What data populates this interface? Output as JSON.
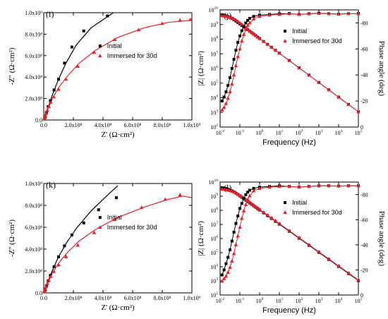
{
  "colors": {
    "initial": "#000000",
    "immersed": "#e8202a",
    "fit_immersed": "#e8202a",
    "fit_initial": "#000000"
  },
  "chart_data": [
    {
      "id": "i",
      "type": "scatter",
      "panel_label": "(i)",
      "xlabel": "Z' (Ω·cm²)",
      "ylabel": "-Z'' (Ω·cm²)",
      "xlim": [
        0,
        1000000000.0
      ],
      "ylim": [
        0,
        1000000000.0
      ],
      "xticks": [
        0,
        200000000.0,
        400000000.0,
        600000000.0,
        800000000.0,
        1000000000.0
      ],
      "xtick_labels": [
        "0.0",
        "2.0x10⁸",
        "4.0x10⁸",
        "6.0x10⁸",
        "8.0x10⁸",
        "1.0x10⁹"
      ],
      "yticks": [
        0,
        200000000.0,
        400000000.0,
        600000000.0,
        800000000.0,
        1000000000.0
      ],
      "ytick_labels": [
        "0.0",
        "2.0x10⁸",
        "4.0x10⁸",
        "6.0x10⁸",
        "8.0x10⁸",
        "1.0x10⁹"
      ],
      "legend": {
        "position": "right",
        "entries": [
          "Initial",
          "Immersed for 30d"
        ]
      },
      "series": [
        {
          "name": "Initial",
          "marker": "square",
          "x": [
            5000000.0,
            10000000.0,
            18000000.0,
            30000000.0,
            45000000.0,
            70000000.0,
            100000000.0,
            140000000.0,
            190000000.0,
            270000000.0,
            430000000.0
          ],
          "y": [
            10000000.0,
            30000000.0,
            70000000.0,
            125000000.0,
            180000000.0,
            280000000.0,
            380000000.0,
            530000000.0,
            680000000.0,
            830000000.0,
            970000000.0
          ]
        },
        {
          "name": "Immersed for 30d",
          "marker": "triangle",
          "x": [
            3000000.0,
            6000000.0,
            10000000.0,
            16000000.0,
            24000000.0,
            34000000.0,
            48000000.0,
            68000000.0,
            100000000.0,
            150000000.0,
            230000000.0,
            340000000.0,
            480000000.0,
            640000000.0,
            800000000.0,
            920000000.0,
            990000000.0
          ],
          "y": [
            8000000.0,
            20000000.0,
            38000000.0,
            60000000.0,
            90000000.0,
            125000000.0,
            165000000.0,
            215000000.0,
            285000000.0,
            380000000.0,
            500000000.0,
            630000000.0,
            750000000.0,
            840000000.0,
            900000000.0,
            930000000.0,
            935000000.0
          ]
        }
      ],
      "fits": [
        {
          "name": "Initial",
          "x": [
            0,
            10000000.0,
            30000000.0,
            60000000.0,
            100000000.0,
            150000000.0,
            220000000.0,
            320000000.0,
            470000000.0
          ],
          "y": [
            0,
            40000000.0,
            120000000.0,
            240000000.0,
            380000000.0,
            530000000.0,
            700000000.0,
            860000000.0,
            1000000000.0
          ]
        },
        {
          "name": "Immersed for 30d",
          "x": [
            0,
            10000000.0,
            30000000.0,
            60000000.0,
            100000000.0,
            160000000.0,
            240000000.0,
            350000000.0,
            500000000.0,
            680000000.0,
            840000000.0,
            1000000000.0
          ],
          "y": [
            0,
            35000000.0,
            110000000.0,
            205000000.0,
            300000000.0,
            410000000.0,
            530000000.0,
            650000000.0,
            770000000.0,
            860000000.0,
            910000000.0,
            930000000.0
          ]
        }
      ]
    },
    {
      "id": "j",
      "type": "scatter",
      "panel_label": "(j)",
      "xlabel": "Frequency (Hz)",
      "ylabel": "|Z| (Ω·cm²)",
      "y2label": "Phase angle (deg)",
      "log_x": true,
      "log_y": true,
      "x_log_range": [
        -2,
        5
      ],
      "y_log_range": [
        2,
        10
      ],
      "y2lim": [
        0,
        -90
      ],
      "y_tick_exps": [
        2,
        3,
        4,
        5,
        6,
        7,
        8,
        9,
        10
      ],
      "x_tick_exps": [
        -2,
        -1,
        0,
        1,
        2,
        3,
        4,
        5
      ],
      "y2ticks": [
        -20,
        -40,
        -60,
        -80
      ],
      "legend": {
        "position": "top-right",
        "entries": [
          "Initial",
          "Immersed for 30d"
        ]
      },
      "series": [
        {
          "name": "Initial |Z|",
          "quantity": "modulus",
          "marker": "square",
          "log_f": [
            -1.9,
            -1.8,
            -1.7,
            -1.6,
            -1.5,
            -1.4,
            -1.3,
            -1.2,
            -1.1,
            -1.0,
            -0.9,
            -0.8,
            -0.7,
            -0.6,
            -0.5,
            -0.4,
            -0.3,
            -0.2,
            -0.1,
            0.0,
            0.2,
            0.4,
            0.6,
            0.8,
            1.0,
            1.5,
            2.0,
            2.5,
            3.0,
            3.5,
            4.0,
            4.5,
            5.0
          ],
          "log_z": [
            9.67,
            9.64,
            9.6,
            9.55,
            9.49,
            9.42,
            9.33,
            9.24,
            9.14,
            9.04,
            8.94,
            8.84,
            8.74,
            8.64,
            8.54,
            8.44,
            8.34,
            8.24,
            8.14,
            8.04,
            7.84,
            7.64,
            7.44,
            7.24,
            7.04,
            6.54,
            6.04,
            5.54,
            5.04,
            4.54,
            4.04,
            3.54,
            3.04
          ]
        },
        {
          "name": "Immersed |Z|",
          "quantity": "modulus",
          "marker": "triangle",
          "log_f": [
            -1.9,
            -1.8,
            -1.7,
            -1.6,
            -1.5,
            -1.4,
            -1.3,
            -1.2,
            -1.1,
            -1.0,
            -0.9,
            -0.8,
            -0.7,
            -0.6,
            -0.5,
            -0.4,
            -0.3,
            -0.2,
            -0.1,
            0.0,
            0.2,
            0.4,
            0.6,
            0.8,
            1.0,
            1.5,
            2.0,
            2.5,
            3.0,
            3.5,
            4.0,
            4.5,
            5.0
          ],
          "log_z": [
            9.6,
            9.58,
            9.56,
            9.53,
            9.49,
            9.44,
            9.38,
            9.3,
            9.21,
            9.11,
            9.0,
            8.89,
            8.78,
            8.67,
            8.56,
            8.45,
            8.34,
            8.24,
            8.14,
            8.04,
            7.84,
            7.64,
            7.44,
            7.24,
            7.04,
            6.54,
            6.04,
            5.54,
            5.04,
            4.54,
            4.04,
            3.54,
            3.04
          ]
        },
        {
          "name": "Initial phase",
          "quantity": "phase",
          "marker": "square",
          "log_f": [
            -1.9,
            -1.8,
            -1.7,
            -1.6,
            -1.5,
            -1.4,
            -1.3,
            -1.2,
            -1.1,
            -1.0,
            -0.9,
            -0.8,
            -0.7,
            -0.6,
            -0.5,
            -0.3,
            0.0,
            0.5,
            1.0,
            1.5,
            2.0,
            2.5,
            3.0,
            3.5,
            4.0,
            4.5,
            5.0
          ],
          "phase": [
            -20,
            -23,
            -27,
            -32,
            -38,
            -45,
            -52,
            -59,
            -65,
            -70,
            -74,
            -77,
            -80,
            -82,
            -83.5,
            -85,
            -86,
            -86.5,
            -87,
            -87.2,
            -86.5,
            -87,
            -87.5,
            -87,
            -86.8,
            -87,
            -87.2
          ]
        },
        {
          "name": "Immersed phase",
          "quantity": "phase",
          "marker": "triangle",
          "log_f": [
            -1.9,
            -1.8,
            -1.7,
            -1.6,
            -1.5,
            -1.4,
            -1.3,
            -1.2,
            -1.1,
            -1.0,
            -0.9,
            -0.8,
            -0.7,
            -0.6,
            -0.5,
            -0.3,
            0.0,
            0.5,
            1.0,
            1.5,
            2.0,
            2.5,
            3.0,
            3.5,
            4.0,
            4.5,
            5.0
          ],
          "phase": [
            -13,
            -15,
            -18,
            -22,
            -27,
            -33,
            -40,
            -47,
            -54,
            -60,
            -66,
            -71,
            -75,
            -78,
            -80,
            -83,
            -85,
            -86,
            -86.5,
            -87,
            -86.5,
            -87,
            -87.3,
            -87,
            -86.8,
            -87,
            -87
          ]
        }
      ]
    },
    {
      "id": "k",
      "type": "scatter",
      "panel_label": "(k)",
      "xlabel": "Z' (Ω·cm²)",
      "ylabel": "-Z'' (Ω·cm²)",
      "xlim": [
        0,
        1000000000.0
      ],
      "ylim": [
        0,
        1000000000.0
      ],
      "xticks": [
        0,
        200000000.0,
        400000000.0,
        600000000.0,
        800000000.0,
        1000000000.0
      ],
      "xtick_labels": [
        "0.0",
        "2.0x10⁸",
        "4.0x10⁸",
        "6.0x10⁸",
        "8.0x10⁸",
        "1.0x10⁹"
      ],
      "yticks": [
        0,
        200000000.0,
        400000000.0,
        600000000.0,
        800000000.0,
        1000000000.0
      ],
      "ytick_labels": [
        "0.0",
        "2.0x10⁸",
        "4.0x10⁸",
        "6.0x10⁸",
        "8.0x10⁸",
        "1.0x10⁹"
      ],
      "legend": {
        "position": "right",
        "entries": [
          "Initial",
          "Immersed for 30d"
        ]
      },
      "series": [
        {
          "name": "Initial",
          "marker": "square",
          "x": [
            4000000.0,
            10000000.0,
            18000000.0,
            30000000.0,
            45000000.0,
            70000000.0,
            100000000.0,
            140000000.0,
            190000000.0,
            270000000.0,
            370000000.0,
            490000000.0
          ],
          "y": [
            10000000.0,
            30000000.0,
            65000000.0,
            110000000.0,
            160000000.0,
            240000000.0,
            330000000.0,
            430000000.0,
            530000000.0,
            640000000.0,
            760000000.0,
            870000000.0
          ]
        },
        {
          "name": "Immersed for 30d",
          "marker": "triangle",
          "x": [
            3000000.0,
            6000000.0,
            10000000.0,
            16000000.0,
            24000000.0,
            34000000.0,
            48000000.0,
            68000000.0,
            100000000.0,
            150000000.0,
            230000000.0,
            340000000.0,
            480000000.0,
            660000000.0,
            820000000.0,
            920000000.0
          ],
          "y": [
            8000000.0,
            20000000.0,
            36000000.0,
            56000000.0,
            84000000.0,
            115000000.0,
            150000000.0,
            195000000.0,
            255000000.0,
            330000000.0,
            435000000.0,
            550000000.0,
            670000000.0,
            780000000.0,
            855000000.0,
            895000000.0
          ]
        }
      ],
      "fits": [
        {
          "name": "Initial",
          "x": [
            0,
            10000000.0,
            30000000.0,
            60000000.0,
            100000000.0,
            150000000.0,
            220000000.0,
            320000000.0,
            420000000.0,
            500000000.0
          ],
          "y": [
            0,
            35000000.0,
            110000000.0,
            210000000.0,
            330000000.0,
            450000000.0,
            590000000.0,
            750000000.0,
            880000000.0,
            980000000.0
          ]
        },
        {
          "name": "Immersed for 30d",
          "x": [
            0,
            10000000.0,
            30000000.0,
            60000000.0,
            100000000.0,
            160000000.0,
            240000000.0,
            350000000.0,
            500000000.0,
            680000000.0,
            840000000.0,
            940000000.0,
            1000000000.0
          ],
          "y": [
            0,
            33000000.0,
            100000000.0,
            185000000.0,
            270000000.0,
            370000000.0,
            475000000.0,
            580000000.0,
            690000000.0,
            785000000.0,
            855000000.0,
            885000000.0,
            870000000.0
          ]
        }
      ]
    },
    {
      "id": "l",
      "type": "scatter",
      "panel_label": "(l)",
      "xlabel": "Frequency (Hz)",
      "ylabel": "|Z| (Ω·cm²)",
      "y2label": "Phase angle (deg)",
      "log_x": true,
      "log_y": true,
      "x_log_range": [
        -2,
        5
      ],
      "y_log_range": [
        2,
        10
      ],
      "y2lim": [
        0,
        -90
      ],
      "y_tick_exps": [
        2,
        3,
        4,
        5,
        6,
        7,
        8,
        9,
        10
      ],
      "x_tick_exps": [
        -2,
        -1,
        0,
        1,
        2,
        3,
        4,
        5
      ],
      "y2ticks": [
        -20,
        -40,
        -60,
        -80
      ],
      "legend": {
        "position": "right",
        "entries": [
          "Initial",
          "Immersed for 30d"
        ]
      },
      "series": [
        {
          "name": "Initial |Z|",
          "quantity": "modulus",
          "marker": "square",
          "log_f": [
            -1.9,
            -1.8,
            -1.7,
            -1.6,
            -1.5,
            -1.4,
            -1.3,
            -1.2,
            -1.1,
            -1.0,
            -0.9,
            -0.8,
            -0.7,
            -0.6,
            -0.5,
            -0.4,
            -0.3,
            -0.2,
            -0.1,
            0.0,
            0.2,
            0.4,
            0.6,
            0.8,
            1.0,
            1.5,
            2.0,
            2.5,
            3.0,
            3.5,
            4.0,
            4.5,
            5.0
          ],
          "log_z": [
            9.6,
            9.58,
            9.55,
            9.5,
            9.45,
            9.38,
            9.3,
            9.21,
            9.12,
            9.02,
            8.92,
            8.82,
            8.72,
            8.62,
            8.52,
            8.42,
            8.32,
            8.22,
            8.12,
            8.02,
            7.82,
            7.62,
            7.42,
            7.22,
            7.02,
            6.52,
            6.02,
            5.52,
            5.02,
            4.52,
            4.02,
            3.52,
            3.02
          ]
        },
        {
          "name": "Immersed |Z|",
          "quantity": "modulus",
          "marker": "triangle",
          "log_f": [
            -1.9,
            -1.8,
            -1.7,
            -1.6,
            -1.5,
            -1.4,
            -1.3,
            -1.2,
            -1.1,
            -1.0,
            -0.9,
            -0.8,
            -0.7,
            -0.6,
            -0.5,
            -0.4,
            -0.3,
            -0.2,
            -0.1,
            0.0,
            0.2,
            0.4,
            0.6,
            0.8,
            1.0,
            1.5,
            2.0,
            2.5,
            3.0,
            3.5,
            4.0,
            4.5,
            5.0
          ],
          "log_z": [
            9.5,
            9.48,
            9.46,
            9.43,
            9.4,
            9.35,
            9.29,
            9.22,
            9.14,
            9.05,
            8.96,
            8.86,
            8.76,
            8.66,
            8.56,
            8.46,
            8.36,
            8.26,
            8.16,
            8.06,
            7.86,
            7.66,
            7.46,
            7.26,
            7.06,
            6.56,
            6.06,
            5.56,
            5.06,
            4.56,
            4.06,
            3.56,
            3.06
          ]
        },
        {
          "name": "Initial phase",
          "quantity": "phase",
          "marker": "square",
          "log_f": [
            -1.9,
            -1.8,
            -1.7,
            -1.6,
            -1.5,
            -1.4,
            -1.3,
            -1.2,
            -1.1,
            -1.0,
            -0.9,
            -0.8,
            -0.7,
            -0.6,
            -0.5,
            -0.3,
            0.0,
            0.5,
            1.0,
            1.5,
            2.0,
            2.5,
            3.0,
            3.5,
            4.0,
            4.5,
            5.0
          ],
          "phase": [
            -16,
            -20,
            -25,
            -30,
            -36,
            -43,
            -50,
            -57,
            -63,
            -69,
            -73,
            -77,
            -80,
            -82,
            -83.5,
            -85,
            -86,
            -86.5,
            -87,
            -86.5,
            -86,
            -86.5,
            -87,
            -87,
            -86.8,
            -87,
            -87
          ]
        },
        {
          "name": "Immersed phase",
          "quantity": "phase",
          "marker": "triangle",
          "log_f": [
            -1.9,
            -1.8,
            -1.7,
            -1.6,
            -1.5,
            -1.4,
            -1.3,
            -1.2,
            -1.1,
            -1.0,
            -0.9,
            -0.8,
            -0.7,
            -0.6,
            -0.5,
            -0.3,
            0.0,
            0.5,
            1.0,
            1.5,
            2.0,
            2.5,
            3.0,
            3.5,
            4.0,
            4.5,
            5.0
          ],
          "phase": [
            -11,
            -13,
            -15,
            -18,
            -22,
            -27,
            -33,
            -40,
            -47,
            -54,
            -61,
            -67,
            -72,
            -76,
            -79,
            -83,
            -85,
            -86,
            -86.5,
            -86.5,
            -86,
            -86.5,
            -87,
            -87,
            -86.8,
            -87,
            -87
          ]
        }
      ]
    }
  ]
}
